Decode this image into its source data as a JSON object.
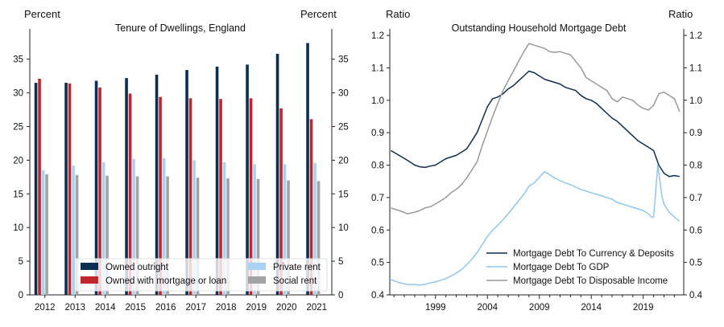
{
  "chart_data": [
    {
      "type": "bar",
      "title": "Tenure of Dwellings, England",
      "ylabel_left": "Percent",
      "ylabel_right": "Percent",
      "ylim": [
        0,
        39.5
      ],
      "yticks": [
        0,
        5,
        10,
        15,
        20,
        25,
        30,
        35
      ],
      "categories": [
        "2012",
        "2013",
        "2014",
        "2015",
        "2016",
        "2017",
        "2018",
        "2019",
        "2020",
        "2021"
      ],
      "legend_position": "bottom",
      "series": [
        {
          "name": "Owned outright",
          "color": "#0b2e52",
          "values": [
            31.5,
            31.5,
            31.8,
            32.2,
            32.7,
            33.4,
            33.9,
            34.2,
            35.8,
            37.4
          ]
        },
        {
          "name": "Owned with mortgage or loan",
          "color": "#c0272d",
          "values": [
            32.1,
            31.4,
            30.8,
            29.9,
            29.4,
            29.2,
            29.1,
            29.2,
            27.7,
            26.1
          ]
        },
        {
          "name": "Private rent",
          "color": "#a9d1f4",
          "values": [
            18.5,
            19.2,
            19.7,
            20.2,
            20.3,
            20.0,
            19.7,
            19.4,
            19.4,
            19.6
          ]
        },
        {
          "name": "Social rent",
          "color": "#a3a3a3",
          "values": [
            17.9,
            17.8,
            17.7,
            17.6,
            17.6,
            17.4,
            17.3,
            17.2,
            17.0,
            16.9
          ]
        }
      ]
    },
    {
      "type": "line",
      "title": "Outstanding Household Mortgage Debt",
      "ylabel_left": "Ratio",
      "ylabel_right": "Ratio",
      "ylim": [
        0.4,
        1.22
      ],
      "yticks": [
        "0.4",
        "0.5",
        "0.6",
        "0.7",
        "0.8",
        "0.9",
        "1.0",
        "1.1",
        "1.2"
      ],
      "xlim": [
        1994.6,
        2022.9
      ],
      "xticks": [
        1999,
        2004,
        2009,
        2014,
        2019
      ],
      "legend_position": "bottom-right",
      "series": [
        {
          "name": "Mortgage Debt To Currency & Deposits",
          "color": "#0b2e52",
          "x": [
            1994.7,
            1995.5,
            1996.3,
            1997,
            1997.5,
            1998,
            1998.5,
            1999,
            1999.5,
            2000,
            2000.5,
            2001,
            2001.5,
            2002,
            2002.5,
            2003,
            2003.5,
            2004,
            2004.5,
            2005,
            2005.5,
            2006,
            2006.5,
            2007,
            2007.5,
            2008,
            2008.5,
            2009,
            2009.5,
            2010,
            2010.5,
            2011,
            2011.5,
            2012,
            2012.5,
            2013,
            2013.5,
            2014,
            2014.5,
            2015,
            2015.5,
            2016,
            2016.5,
            2017,
            2017.5,
            2018,
            2018.5,
            2019,
            2019.5,
            2020,
            2020.5,
            2021,
            2021.5,
            2022,
            2022.5
          ],
          "y": [
            0.845,
            0.83,
            0.815,
            0.8,
            0.795,
            0.793,
            0.797,
            0.8,
            0.81,
            0.82,
            0.825,
            0.83,
            0.84,
            0.85,
            0.875,
            0.9,
            0.94,
            0.98,
            1.005,
            1.01,
            1.02,
            1.035,
            1.045,
            1.06,
            1.075,
            1.09,
            1.085,
            1.075,
            1.065,
            1.06,
            1.055,
            1.05,
            1.04,
            1.035,
            1.03,
            1.015,
            1.005,
            1.0,
            0.99,
            0.975,
            0.96,
            0.945,
            0.935,
            0.92,
            0.905,
            0.89,
            0.875,
            0.865,
            0.855,
            0.845,
            0.8,
            0.775,
            0.765,
            0.768,
            0.765
          ]
        },
        {
          "name": "Mortgage Debt To GDP",
          "color": "#8fc7ef",
          "x": [
            1994.7,
            1995.5,
            1996.3,
            1997,
            1997.5,
            1998,
            1998.5,
            1999,
            1999.5,
            2000,
            2000.5,
            2001,
            2001.5,
            2002,
            2002.5,
            2003,
            2003.5,
            2004,
            2004.5,
            2005,
            2005.5,
            2006,
            2006.5,
            2007,
            2007.5,
            2008,
            2008.5,
            2009,
            2009.5,
            2010,
            2010.5,
            2011,
            2011.5,
            2012,
            2012.5,
            2013,
            2013.5,
            2014,
            2014.5,
            2015,
            2015.5,
            2016,
            2016.5,
            2017,
            2017.5,
            2018,
            2018.5,
            2019,
            2019.5,
            2019.8,
            2020,
            2020.4,
            2020.8,
            2021,
            2021.5,
            2022,
            2022.5
          ],
          "y": [
            0.447,
            0.438,
            0.432,
            0.432,
            0.43,
            0.433,
            0.437,
            0.44,
            0.445,
            0.45,
            0.458,
            0.467,
            0.478,
            0.493,
            0.51,
            0.53,
            0.555,
            0.58,
            0.6,
            0.615,
            0.632,
            0.65,
            0.67,
            0.69,
            0.71,
            0.735,
            0.745,
            0.762,
            0.78,
            0.77,
            0.76,
            0.752,
            0.745,
            0.74,
            0.732,
            0.725,
            0.72,
            0.715,
            0.71,
            0.705,
            0.7,
            0.695,
            0.685,
            0.68,
            0.675,
            0.67,
            0.665,
            0.66,
            0.65,
            0.64,
            0.64,
            0.8,
            0.705,
            0.68,
            0.655,
            0.64,
            0.627
          ]
        },
        {
          "name": "Mortgage Debt To Disposable Income",
          "color": "#999999",
          "x": [
            1994.7,
            1995.5,
            1996.3,
            1997,
            1997.5,
            1998,
            1998.5,
            1999,
            1999.5,
            2000,
            2000.5,
            2001,
            2001.5,
            2002,
            2002.5,
            2003,
            2003.5,
            2004,
            2004.5,
            2005,
            2005.5,
            2006,
            2006.5,
            2007,
            2007.5,
            2008,
            2008.5,
            2009,
            2009.5,
            2010,
            2010.5,
            2011,
            2011.5,
            2012,
            2012.5,
            2013,
            2013.5,
            2014,
            2014.5,
            2015,
            2015.5,
            2016,
            2016.5,
            2017,
            2017.5,
            2018,
            2018.5,
            2019,
            2019.5,
            2020,
            2020.5,
            2021,
            2021.5,
            2022,
            2022.5
          ],
          "y": [
            0.668,
            0.66,
            0.65,
            0.655,
            0.66,
            0.668,
            0.672,
            0.68,
            0.69,
            0.7,
            0.715,
            0.725,
            0.74,
            0.76,
            0.785,
            0.81,
            0.86,
            0.905,
            0.95,
            0.99,
            1.03,
            1.06,
            1.09,
            1.12,
            1.15,
            1.175,
            1.17,
            1.165,
            1.16,
            1.15,
            1.148,
            1.15,
            1.145,
            1.14,
            1.12,
            1.1,
            1.07,
            1.06,
            1.05,
            1.04,
            1.03,
            1.005,
            0.995,
            1.01,
            1.005,
            1.0,
            0.985,
            0.975,
            0.97,
            0.985,
            1.02,
            1.025,
            1.015,
            1.005,
            0.965
          ]
        }
      ]
    }
  ]
}
